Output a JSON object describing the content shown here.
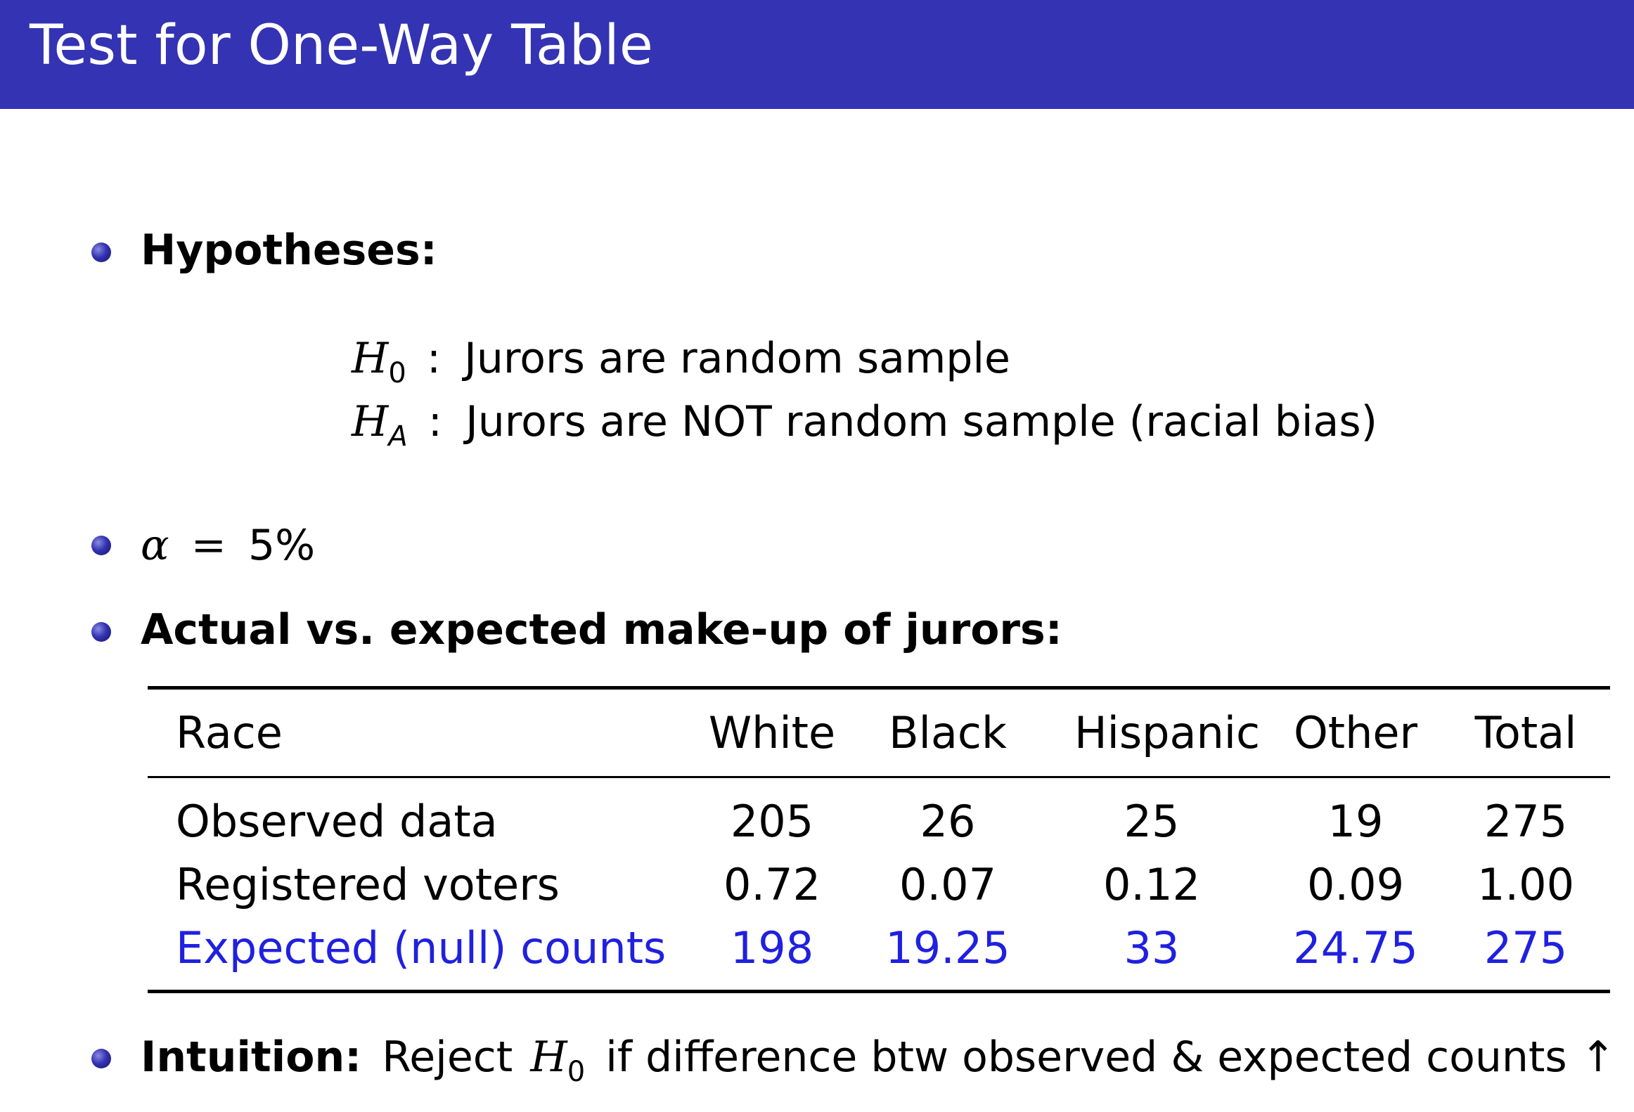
{
  "slide": {
    "title": "Test for One-Way Table",
    "hypotheses_label": "Hypotheses:",
    "h0": {
      "symbol": "H",
      "sub": "0",
      "sep": ":",
      "text": "Jurors are random sample"
    },
    "ha": {
      "symbol": "H",
      "sub": "A",
      "sep": ":",
      "text": "Jurors are NOT random sample (racial bias)"
    },
    "alpha": {
      "symbol": "α",
      "eq": "=",
      "value": "5%"
    },
    "table_label": "Actual vs. expected make-up of jurors:",
    "intuition": {
      "label": "Intuition:",
      "pre": "Reject",
      "symbol": "H",
      "sub": "0",
      "post": "if difference btw observed & expected counts ↑"
    }
  },
  "table": {
    "headers": [
      "Race",
      "White",
      "Black",
      "Hispanic",
      "Other",
      "Total"
    ],
    "rows": [
      {
        "label": "Observed data",
        "values": [
          "205",
          "26",
          "25",
          "19",
          "275"
        ]
      },
      {
        "label": "Registered voters",
        "values": [
          "0.72",
          "0.07",
          "0.12",
          "0.09",
          "1.00"
        ]
      },
      {
        "label": "Expected (null) counts",
        "values": [
          "198",
          "19.25",
          "33",
          "24.75",
          "275"
        ]
      }
    ]
  },
  "colors": {
    "title_bar": "#3333b3",
    "highlight_row": "#2020e0"
  }
}
